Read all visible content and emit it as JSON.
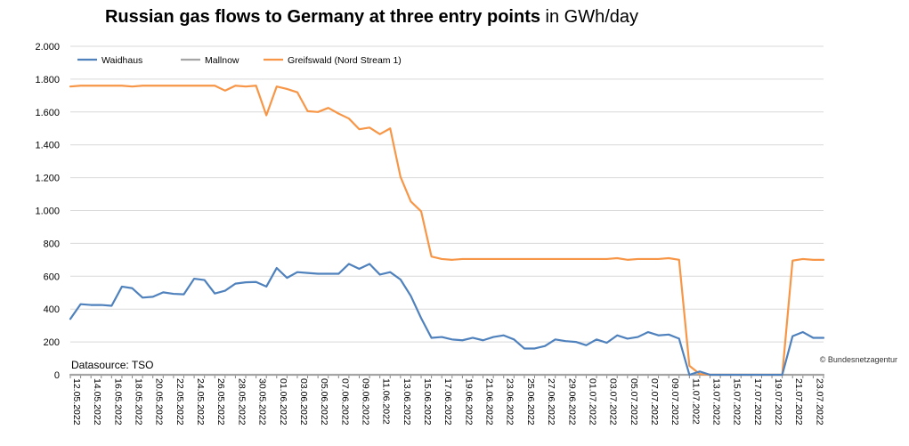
{
  "title": {
    "bold": "Russian gas flows to Germany at three entry points",
    "unit": " in GWh/day"
  },
  "annotations": {
    "source": "Datasource: TSO",
    "credit": "© Bundesnetzagentur"
  },
  "chart_data": {
    "type": "line",
    "title": "Russian gas flows to Germany at three entry points in GWh/day",
    "ylim": [
      0,
      2000
    ],
    "yticks": [
      0,
      200,
      400,
      600,
      800,
      1000,
      1200,
      1400,
      1600,
      1800,
      2000
    ],
    "ytick_labels": [
      "0",
      "200",
      "400",
      "600",
      "800",
      "1.000",
      "1.200",
      "1.400",
      "1.600",
      "1.800",
      "2.000"
    ],
    "xticks": [
      "12.05.2022",
      "14.05.2022",
      "16.05.2022",
      "18.05.2022",
      "20.05.2022",
      "22.05.2022",
      "24.05.2022",
      "26.05.2022",
      "28.05.2022",
      "30.05.2022",
      "01.06.2022",
      "03.06.2022",
      "05.06.2022",
      "07.06.2022",
      "09.06.2022",
      "11.06.2022",
      "13.06.2022",
      "15.06.2022",
      "17.06.2022",
      "19.06.2022",
      "21.06.2022",
      "23.06.2022",
      "25.06.2022",
      "27.06.2022",
      "29.06.2022",
      "01.07.2022",
      "03.07.2022",
      "05.07.2022",
      "07.07.2022",
      "09.07.2022",
      "11.07.2022",
      "13.07.2022",
      "15.07.2022",
      "17.07.2022",
      "19.07.2022",
      "21.07.2022",
      "23.07.2022"
    ],
    "x": [
      "12.05.2022",
      "13.05.2022",
      "14.05.2022",
      "15.05.2022",
      "16.05.2022",
      "17.05.2022",
      "18.05.2022",
      "19.05.2022",
      "20.05.2022",
      "21.05.2022",
      "22.05.2022",
      "23.05.2022",
      "24.05.2022",
      "25.05.2022",
      "26.05.2022",
      "27.05.2022",
      "28.05.2022",
      "29.05.2022",
      "30.05.2022",
      "31.05.2022",
      "01.06.2022",
      "02.06.2022",
      "03.06.2022",
      "04.06.2022",
      "05.06.2022",
      "06.06.2022",
      "07.06.2022",
      "08.06.2022",
      "09.06.2022",
      "10.06.2022",
      "11.06.2022",
      "12.06.2022",
      "13.06.2022",
      "14.06.2022",
      "15.06.2022",
      "16.06.2022",
      "17.06.2022",
      "18.06.2022",
      "19.06.2022",
      "20.06.2022",
      "21.06.2022",
      "22.06.2022",
      "23.06.2022",
      "24.06.2022",
      "25.06.2022",
      "26.06.2022",
      "27.06.2022",
      "28.06.2022",
      "29.06.2022",
      "30.06.2022",
      "01.07.2022",
      "02.07.2022",
      "03.07.2022",
      "04.07.2022",
      "05.07.2022",
      "06.07.2022",
      "07.07.2022",
      "08.07.2022",
      "09.07.2022",
      "10.07.2022",
      "11.07.2022",
      "12.07.2022",
      "13.07.2022",
      "14.07.2022",
      "15.07.2022",
      "16.07.2022",
      "17.07.2022",
      "18.07.2022",
      "19.07.2022",
      "20.07.2022",
      "21.07.2022",
      "22.07.2022",
      "23.07.2022",
      "24.07.2022"
    ],
    "series": [
      {
        "name": "Waidhaus",
        "color": "#4f81bd",
        "values": [
          340,
          430,
          425,
          425,
          420,
          537,
          527,
          470,
          475,
          502,
          493,
          490,
          585,
          577,
          495,
          512,
          555,
          563,
          565,
          537,
          650,
          590,
          625,
          620,
          615,
          615,
          615,
          675,
          645,
          675,
          610,
          625,
          580,
          480,
          345,
          225,
          230,
          215,
          210,
          225,
          210,
          230,
          240,
          215,
          160,
          160,
          175,
          215,
          205,
          200,
          180,
          215,
          195,
          240,
          220,
          230,
          260,
          240,
          245,
          220,
          0,
          20,
          0,
          0,
          0,
          0,
          0,
          0,
          0,
          0,
          235,
          260,
          225,
          225
        ]
      },
      {
        "name": "Mallnow",
        "color": "#a5a5a5",
        "values": [
          0,
          0,
          0,
          0,
          0,
          0,
          0,
          0,
          0,
          0,
          0,
          0,
          0,
          0,
          0,
          0,
          0,
          0,
          0,
          0,
          0,
          0,
          0,
          0,
          0,
          0,
          0,
          0,
          0,
          0,
          0,
          0,
          0,
          0,
          0,
          0,
          0,
          0,
          0,
          0,
          0,
          0,
          0,
          0,
          0,
          0,
          0,
          0,
          0,
          0,
          0,
          0,
          0,
          0,
          0,
          0,
          0,
          0,
          0,
          0,
          0,
          0,
          0,
          0,
          0,
          0,
          0,
          0,
          0,
          0,
          0,
          0,
          0,
          0
        ]
      },
      {
        "name": "Greifswald (Nord Stream 1)",
        "color": "#f79646",
        "values": [
          1755,
          1760,
          1760,
          1760,
          1760,
          1760,
          1755,
          1760,
          1760,
          1760,
          1760,
          1760,
          1760,
          1760,
          1760,
          1730,
          1760,
          1755,
          1760,
          1580,
          1755,
          1740,
          1720,
          1605,
          1600,
          1625,
          1590,
          1560,
          1495,
          1505,
          1465,
          1500,
          1205,
          1055,
          995,
          720,
          705,
          700,
          705,
          705,
          705,
          705,
          705,
          705,
          705,
          705,
          705,
          705,
          705,
          705,
          705,
          705,
          705,
          710,
          700,
          705,
          705,
          705,
          710,
          700,
          55,
          5,
          0,
          0,
          0,
          0,
          0,
          0,
          0,
          0,
          695,
          705,
          700,
          700
        ]
      }
    ],
    "legend_position": "top-left",
    "grid": "horizontal"
  }
}
